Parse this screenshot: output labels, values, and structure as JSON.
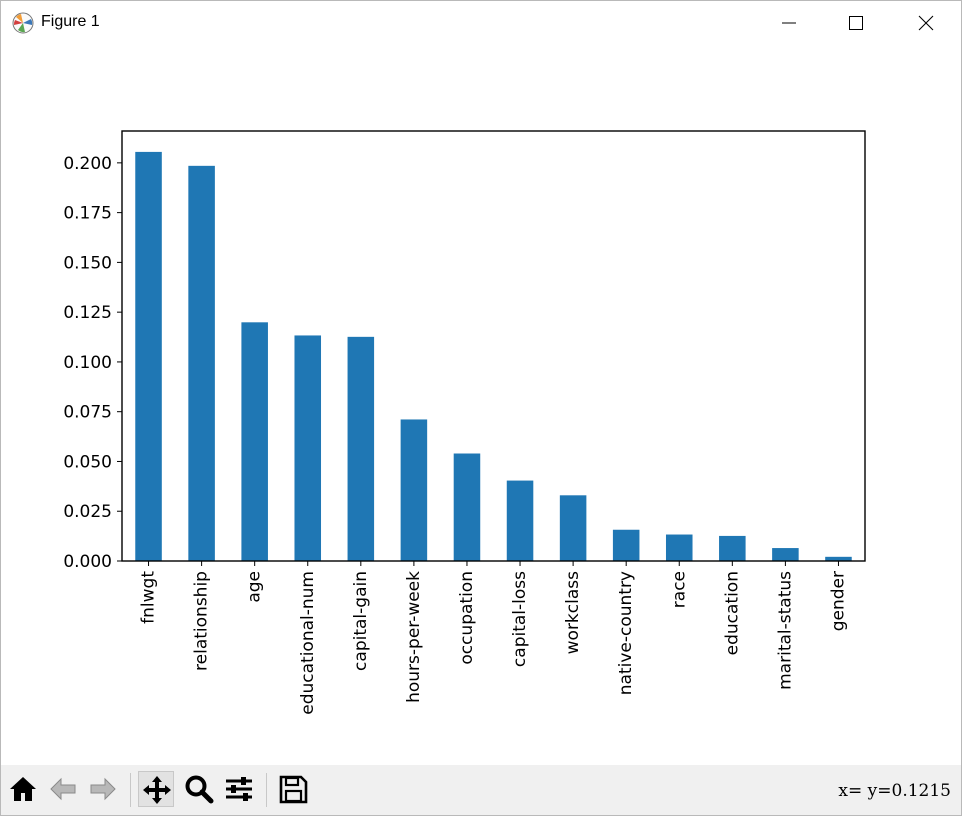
{
  "window": {
    "title": "Figure 1",
    "controls": [
      "minimize",
      "maximize",
      "close"
    ]
  },
  "toolbar": {
    "buttons": [
      "home-icon",
      "back-arrow-icon",
      "forward-arrow-icon",
      "pan-icon",
      "zoom-icon",
      "configure-subplots-icon",
      "save-icon"
    ],
    "active_tool": "pan",
    "coords_text": "x= y=0.1215"
  },
  "chart_data": {
    "type": "bar",
    "categories": [
      "fnlwgt",
      "relationship",
      "age",
      "educational-num",
      "capital-gain",
      "hours-per-week",
      "occupation",
      "capital-loss",
      "workclass",
      "native-country",
      "race",
      "education",
      "marital-status",
      "gender"
    ],
    "values": [
      0.2055,
      0.1985,
      0.1199,
      0.1133,
      0.1126,
      0.0711,
      0.054,
      0.0404,
      0.033,
      0.0157,
      0.0133,
      0.0126,
      0.0065,
      0.0021
    ],
    "ylim": [
      0,
      0.216
    ],
    "yticks": [
      "0.000",
      "0.025",
      "0.050",
      "0.075",
      "0.100",
      "0.125",
      "0.150",
      "0.175",
      "0.200"
    ],
    "bar_color": "#1f77b4",
    "title": "",
    "xlabel": "",
    "ylabel": "",
    "grid": false
  }
}
